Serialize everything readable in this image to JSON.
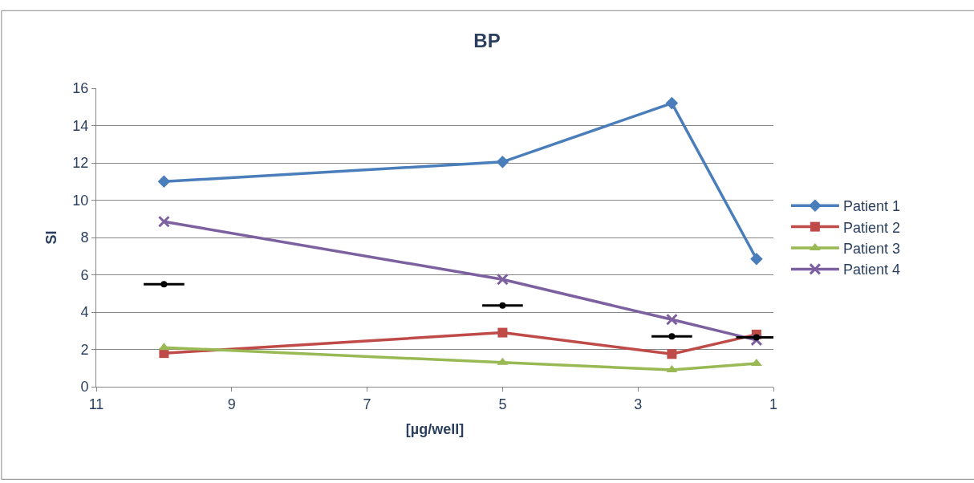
{
  "chart_data": {
    "type": "line",
    "title": "BP",
    "xlabel": "[µg/well]",
    "ylabel": "SI",
    "x": [
      10,
      5,
      2.5,
      1.25
    ],
    "series": [
      {
        "name": "Patient 1",
        "color": "#4a7ebb",
        "marker": "diamond",
        "values": [
          11,
          12.05,
          15.2,
          6.85
        ]
      },
      {
        "name": "Patient 2",
        "color": "#be4b48",
        "marker": "square",
        "values": [
          1.8,
          2.9,
          1.75,
          2.8
        ]
      },
      {
        "name": "Patient 3",
        "color": "#98b954",
        "marker": "triangle",
        "values": [
          2.1,
          1.3,
          0.9,
          1.25
        ]
      },
      {
        "name": "Patient 4",
        "color": "#7d60a0",
        "marker": "cross",
        "values": [
          8.85,
          5.75,
          3.6,
          2.5
        ]
      },
      {
        "type": "scatter",
        "color": "#000000",
        "values": [
          5.5,
          4.35,
          2.7,
          2.65
        ],
        "xerrors": [
          0.3,
          0.3,
          0.3,
          0.3
        ]
      }
    ],
    "xlim": [
      11,
      1
    ],
    "xticks": [
      11,
      9,
      7,
      5,
      3,
      1
    ],
    "ylim": [
      0,
      16
    ],
    "yticks": [
      0,
      2,
      4,
      6,
      8,
      10,
      12,
      14,
      16
    ],
    "grid": "y",
    "legend": "right"
  }
}
